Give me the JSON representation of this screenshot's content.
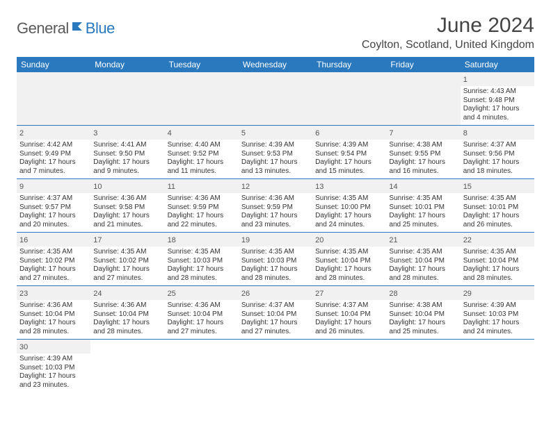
{
  "logo": {
    "text1": "General",
    "text2": "Blue"
  },
  "title": "June 2024",
  "location": "Coylton, Scotland, United Kingdom",
  "colors": {
    "header_bg": "#2a79bf",
    "header_fg": "#ffffff",
    "divider": "#2a79bf",
    "daynum_bg": "#f1f1f1"
  },
  "dayHeaders": [
    "Sunday",
    "Monday",
    "Tuesday",
    "Wednesday",
    "Thursday",
    "Friday",
    "Saturday"
  ],
  "weeks": [
    [
      null,
      null,
      null,
      null,
      null,
      null,
      {
        "n": "1",
        "sr": "Sunrise: 4:43 AM",
        "ss": "Sunset: 9:48 PM",
        "dl": "Daylight: 17 hours and 4 minutes."
      }
    ],
    [
      {
        "n": "2",
        "sr": "Sunrise: 4:42 AM",
        "ss": "Sunset: 9:49 PM",
        "dl": "Daylight: 17 hours and 7 minutes."
      },
      {
        "n": "3",
        "sr": "Sunrise: 4:41 AM",
        "ss": "Sunset: 9:50 PM",
        "dl": "Daylight: 17 hours and 9 minutes."
      },
      {
        "n": "4",
        "sr": "Sunrise: 4:40 AM",
        "ss": "Sunset: 9:52 PM",
        "dl": "Daylight: 17 hours and 11 minutes."
      },
      {
        "n": "5",
        "sr": "Sunrise: 4:39 AM",
        "ss": "Sunset: 9:53 PM",
        "dl": "Daylight: 17 hours and 13 minutes."
      },
      {
        "n": "6",
        "sr": "Sunrise: 4:39 AM",
        "ss": "Sunset: 9:54 PM",
        "dl": "Daylight: 17 hours and 15 minutes."
      },
      {
        "n": "7",
        "sr": "Sunrise: 4:38 AM",
        "ss": "Sunset: 9:55 PM",
        "dl": "Daylight: 17 hours and 16 minutes."
      },
      {
        "n": "8",
        "sr": "Sunrise: 4:37 AM",
        "ss": "Sunset: 9:56 PM",
        "dl": "Daylight: 17 hours and 18 minutes."
      }
    ],
    [
      {
        "n": "9",
        "sr": "Sunrise: 4:37 AM",
        "ss": "Sunset: 9:57 PM",
        "dl": "Daylight: 17 hours and 20 minutes."
      },
      {
        "n": "10",
        "sr": "Sunrise: 4:36 AM",
        "ss": "Sunset: 9:58 PM",
        "dl": "Daylight: 17 hours and 21 minutes."
      },
      {
        "n": "11",
        "sr": "Sunrise: 4:36 AM",
        "ss": "Sunset: 9:59 PM",
        "dl": "Daylight: 17 hours and 22 minutes."
      },
      {
        "n": "12",
        "sr": "Sunrise: 4:36 AM",
        "ss": "Sunset: 9:59 PM",
        "dl": "Daylight: 17 hours and 23 minutes."
      },
      {
        "n": "13",
        "sr": "Sunrise: 4:35 AM",
        "ss": "Sunset: 10:00 PM",
        "dl": "Daylight: 17 hours and 24 minutes."
      },
      {
        "n": "14",
        "sr": "Sunrise: 4:35 AM",
        "ss": "Sunset: 10:01 PM",
        "dl": "Daylight: 17 hours and 25 minutes."
      },
      {
        "n": "15",
        "sr": "Sunrise: 4:35 AM",
        "ss": "Sunset: 10:01 PM",
        "dl": "Daylight: 17 hours and 26 minutes."
      }
    ],
    [
      {
        "n": "16",
        "sr": "Sunrise: 4:35 AM",
        "ss": "Sunset: 10:02 PM",
        "dl": "Daylight: 17 hours and 27 minutes."
      },
      {
        "n": "17",
        "sr": "Sunrise: 4:35 AM",
        "ss": "Sunset: 10:02 PM",
        "dl": "Daylight: 17 hours and 27 minutes."
      },
      {
        "n": "18",
        "sr": "Sunrise: 4:35 AM",
        "ss": "Sunset: 10:03 PM",
        "dl": "Daylight: 17 hours and 28 minutes."
      },
      {
        "n": "19",
        "sr": "Sunrise: 4:35 AM",
        "ss": "Sunset: 10:03 PM",
        "dl": "Daylight: 17 hours and 28 minutes."
      },
      {
        "n": "20",
        "sr": "Sunrise: 4:35 AM",
        "ss": "Sunset: 10:04 PM",
        "dl": "Daylight: 17 hours and 28 minutes."
      },
      {
        "n": "21",
        "sr": "Sunrise: 4:35 AM",
        "ss": "Sunset: 10:04 PM",
        "dl": "Daylight: 17 hours and 28 minutes."
      },
      {
        "n": "22",
        "sr": "Sunrise: 4:35 AM",
        "ss": "Sunset: 10:04 PM",
        "dl": "Daylight: 17 hours and 28 minutes."
      }
    ],
    [
      {
        "n": "23",
        "sr": "Sunrise: 4:36 AM",
        "ss": "Sunset: 10:04 PM",
        "dl": "Daylight: 17 hours and 28 minutes."
      },
      {
        "n": "24",
        "sr": "Sunrise: 4:36 AM",
        "ss": "Sunset: 10:04 PM",
        "dl": "Daylight: 17 hours and 28 minutes."
      },
      {
        "n": "25",
        "sr": "Sunrise: 4:36 AM",
        "ss": "Sunset: 10:04 PM",
        "dl": "Daylight: 17 hours and 27 minutes."
      },
      {
        "n": "26",
        "sr": "Sunrise: 4:37 AM",
        "ss": "Sunset: 10:04 PM",
        "dl": "Daylight: 17 hours and 27 minutes."
      },
      {
        "n": "27",
        "sr": "Sunrise: 4:37 AM",
        "ss": "Sunset: 10:04 PM",
        "dl": "Daylight: 17 hours and 26 minutes."
      },
      {
        "n": "28",
        "sr": "Sunrise: 4:38 AM",
        "ss": "Sunset: 10:04 PM",
        "dl": "Daylight: 17 hours and 25 minutes."
      },
      {
        "n": "29",
        "sr": "Sunrise: 4:39 AM",
        "ss": "Sunset: 10:03 PM",
        "dl": "Daylight: 17 hours and 24 minutes."
      }
    ],
    [
      {
        "n": "30",
        "sr": "Sunrise: 4:39 AM",
        "ss": "Sunset: 10:03 PM",
        "dl": "Daylight: 17 hours and 23 minutes."
      },
      null,
      null,
      null,
      null,
      null,
      null
    ]
  ]
}
